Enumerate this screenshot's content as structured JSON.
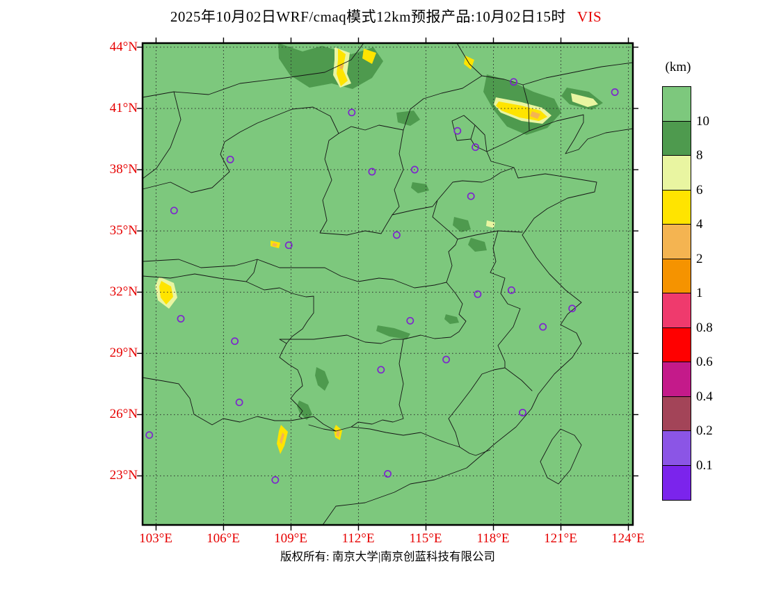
{
  "title": {
    "main": "2025年10月02日WRF/cmaq模式12km预报产品:10月02日15时",
    "product": "VIS"
  },
  "axes": {
    "lat_labels": [
      "44°N",
      "41°N",
      "38°N",
      "35°N",
      "32°N",
      "29°N",
      "26°N",
      "23°N"
    ],
    "lon_labels": [
      "103°E",
      "106°E",
      "109°E",
      "112°E",
      "115°E",
      "118°E",
      "121°E",
      "124°E"
    ]
  },
  "legend": {
    "unit": "(km)",
    "labels": [
      "10",
      "8",
      "6",
      "4",
      "2",
      "1",
      "0.8",
      "0.6",
      "0.4",
      "0.2",
      "0.1"
    ],
    "colors": [
      "#7dc87d",
      "#4e9a4e",
      "#e9f5a1",
      "#ffe400",
      "#f4b451",
      "#f59300",
      "#ef3a6d",
      "#ff0000",
      "#c41a8a",
      "#a34458",
      "#8b55e6",
      "#7b24ec"
    ]
  },
  "footer": {
    "copyright": "版权所有: 南京大学|南京创蓝科技有限公司"
  },
  "colors": {
    "axis_label": "#e60000",
    "frame": "#000000",
    "marker": "#7d26cd"
  },
  "chart_data": {
    "type": "heatmap",
    "subtype": "filled-contour visibility forecast map over eastern China",
    "variable": "VIS",
    "unit": "km",
    "model": "WRF/cmaq 12km",
    "run_date": "2025年10月02日",
    "valid_time": "10月02日15时",
    "lon_ticks": [
      103,
      106,
      109,
      112,
      115,
      118,
      121,
      124
    ],
    "lat_ticks": [
      44,
      41,
      38,
      35,
      32,
      29,
      26,
      23
    ],
    "levels_km": [
      10,
      8,
      6,
      4,
      2,
      1,
      0.8,
      0.6,
      0.4,
      0.2,
      0.1
    ],
    "field_summary": "Background visibility above 10 km (light green) over most of the domain; 8-10 km (dark green) patches over Inner Mongolia, northern Hebei/Liaoning, Shanxi-Henan, Shandong, Hubei and western Hunan; 4-6 km (yellow) bands in northeast Hebei, north-central Inner Mongolia, near Xi'an, the western Sichuan edge and northern Guangxi; small 2-4 km (orange) cores embedded in the yellow areas.",
    "city_markers_lon_lat": [
      [
        111.7,
        40.8
      ],
      [
        116.4,
        39.9
      ],
      [
        117.2,
        39.1
      ],
      [
        114.5,
        38.0
      ],
      [
        112.6,
        37.9
      ],
      [
        117.0,
        36.7
      ],
      [
        123.4,
        41.8
      ],
      [
        118.9,
        42.3
      ],
      [
        106.3,
        38.5
      ],
      [
        103.8,
        36.0
      ],
      [
        108.9,
        34.3
      ],
      [
        113.7,
        34.8
      ],
      [
        117.3,
        31.9
      ],
      [
        118.8,
        32.1
      ],
      [
        121.5,
        31.2
      ],
      [
        120.2,
        30.3
      ],
      [
        114.3,
        30.6
      ],
      [
        104.1,
        30.7
      ],
      [
        106.5,
        29.6
      ],
      [
        113.0,
        28.2
      ],
      [
        115.9,
        28.7
      ],
      [
        106.7,
        26.6
      ],
      [
        119.3,
        26.1
      ],
      [
        102.7,
        25.0
      ],
      [
        113.3,
        23.1
      ],
      [
        108.3,
        22.8
      ]
    ]
  }
}
